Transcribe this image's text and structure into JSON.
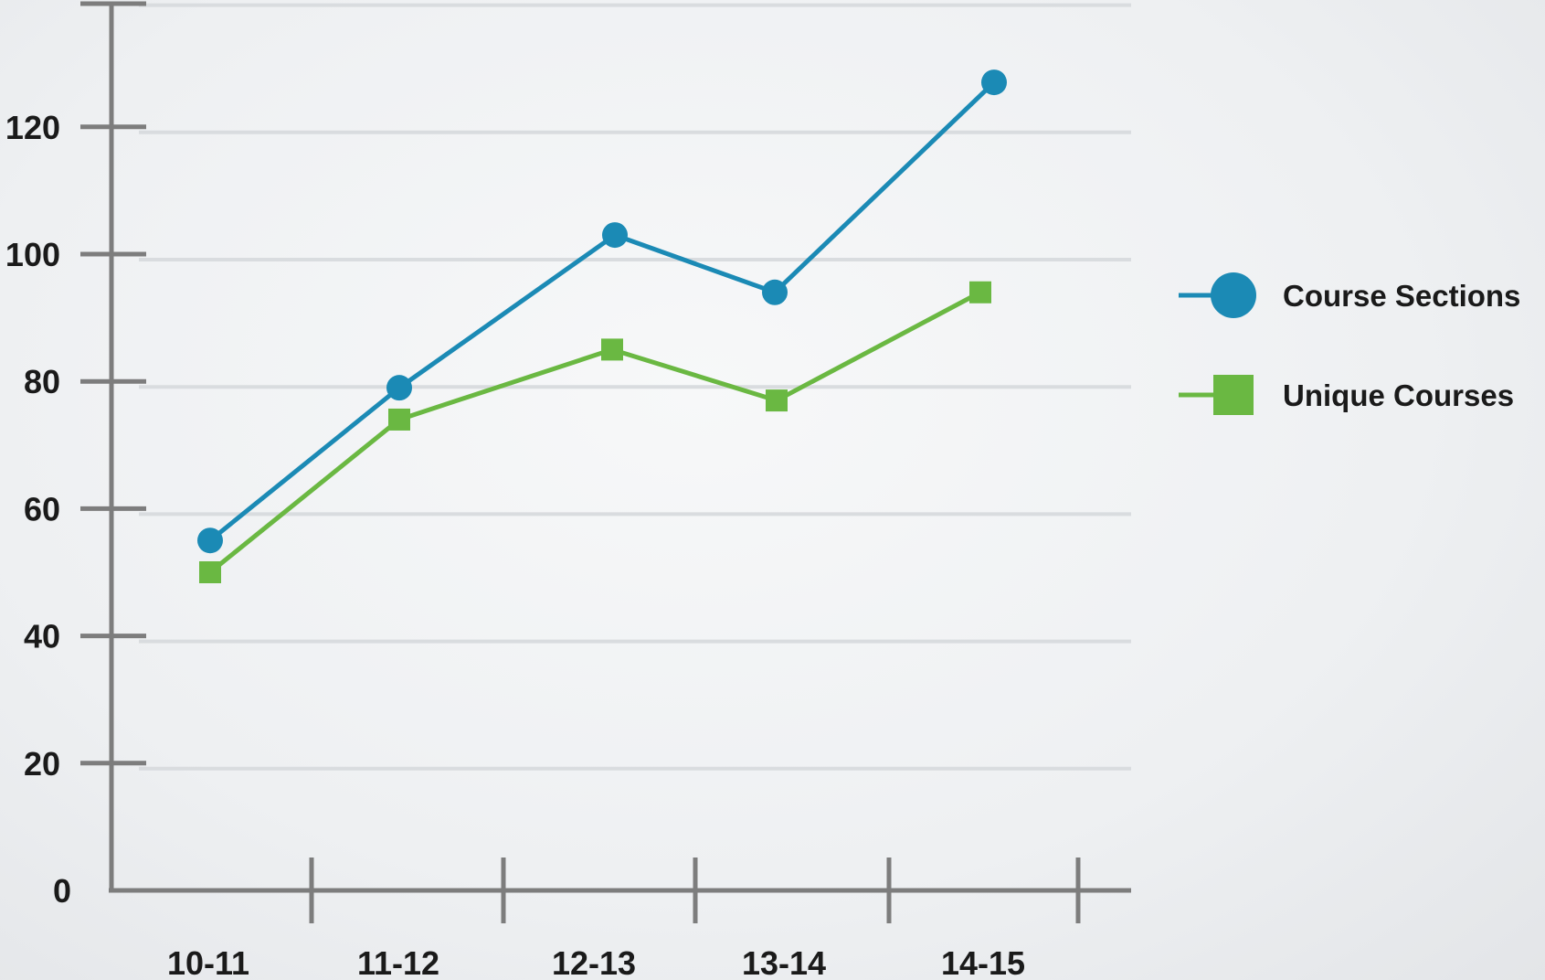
{
  "chart_data": {
    "type": "line",
    "categories": [
      "10-11",
      "11-12",
      "12-13",
      "13-14",
      "14-15"
    ],
    "series": [
      {
        "name": "Course Sections",
        "values": [
          55,
          79,
          103,
          94,
          127
        ],
        "color": "#1b8ab5",
        "marker": "circle"
      },
      {
        "name": "Unique Courses",
        "values": [
          50,
          74,
          85,
          77,
          94
        ],
        "color": "#6ab842",
        "marker": "square"
      }
    ],
    "y_ticks": [
      0,
      20,
      40,
      60,
      80,
      100,
      120
    ],
    "ylim": [
      0,
      140
    ],
    "grid": true,
    "legend": "right",
    "title": "",
    "xlabel": "",
    "ylabel": ""
  }
}
